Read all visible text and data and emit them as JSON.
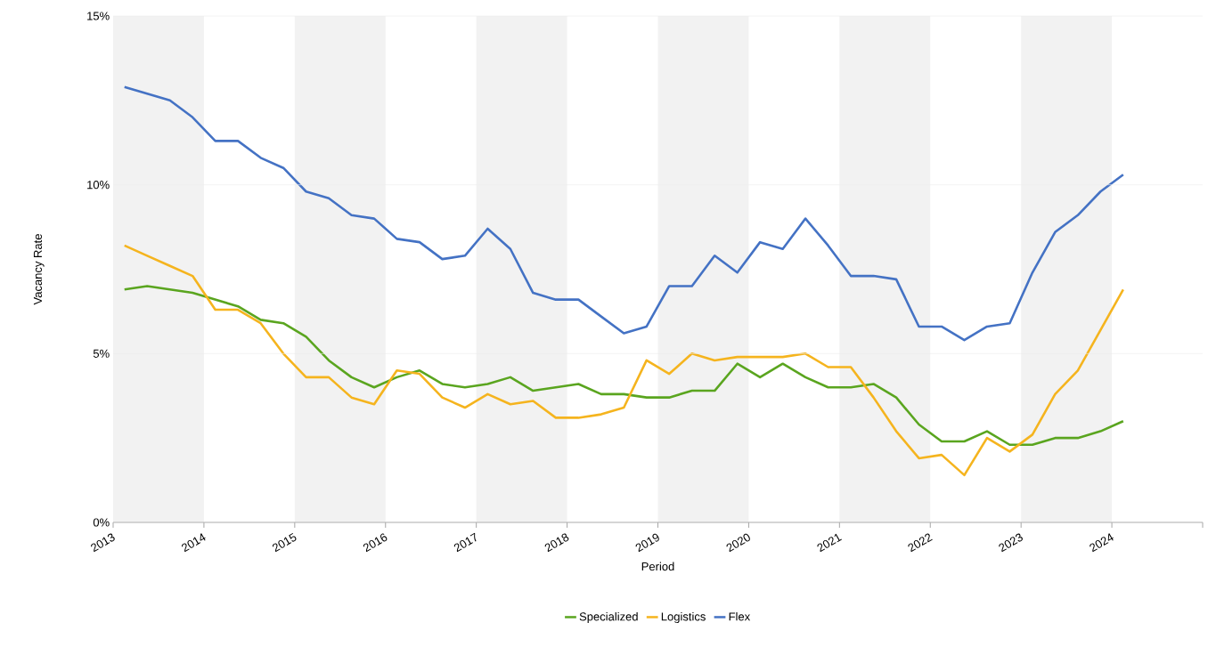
{
  "chart_data": {
    "type": "line",
    "xlabel": "Period",
    "ylabel": "Vacancy Rate",
    "x": [
      2013.125,
      2013.375,
      2013.625,
      2013.875,
      2014.125,
      2014.375,
      2014.625,
      2014.875,
      2015.125,
      2015.375,
      2015.625,
      2015.875,
      2016.125,
      2016.375,
      2016.625,
      2016.875,
      2017.125,
      2017.375,
      2017.625,
      2017.875,
      2018.125,
      2018.375,
      2018.625,
      2018.875,
      2019.125,
      2019.375,
      2019.625,
      2019.875,
      2020.125,
      2020.375,
      2020.625,
      2020.875,
      2021.125,
      2021.375,
      2021.625,
      2021.875,
      2022.125,
      2022.375,
      2022.625,
      2022.875,
      2023.125,
      2023.375,
      2023.625,
      2023.875,
      2024.125
    ],
    "series": [
      {
        "name": "Specialized",
        "color": "#5aa51f",
        "values": [
          6.9,
          7.0,
          6.9,
          6.8,
          6.6,
          6.4,
          6.0,
          5.9,
          5.5,
          4.8,
          4.3,
          4.0,
          4.3,
          4.5,
          4.1,
          4.0,
          4.1,
          4.3,
          3.9,
          4.0,
          4.1,
          3.8,
          3.8,
          3.7,
          3.7,
          3.9,
          3.9,
          4.7,
          4.3,
          4.7,
          4.3,
          4.0,
          4.0,
          4.1,
          3.7,
          2.9,
          2.4,
          2.4,
          2.7,
          2.3,
          2.3,
          2.5,
          2.5,
          2.7,
          3.0
        ]
      },
      {
        "name": "Logistics",
        "color": "#f5b41e",
        "values": [
          8.2,
          7.9,
          7.6,
          7.3,
          6.3,
          6.3,
          5.9,
          5.0,
          4.3,
          4.3,
          3.7,
          3.5,
          4.5,
          4.4,
          3.7,
          3.4,
          3.8,
          3.5,
          3.6,
          3.1,
          3.1,
          3.2,
          3.4,
          4.8,
          4.4,
          5.0,
          4.8,
          4.9,
          4.9,
          4.9,
          5.0,
          4.6,
          4.6,
          3.7,
          2.7,
          1.9,
          2.0,
          1.4,
          2.5,
          2.1,
          2.6,
          3.8,
          4.5,
          5.7,
          6.9
        ]
      },
      {
        "name": "Flex",
        "color": "#4472c4",
        "values": [
          12.9,
          12.7,
          12.5,
          12.0,
          11.3,
          11.3,
          10.8,
          10.5,
          9.8,
          9.6,
          9.1,
          9.0,
          8.4,
          8.3,
          7.8,
          7.9,
          8.7,
          8.1,
          6.8,
          6.6,
          6.6,
          6.1,
          5.6,
          5.8,
          7.0,
          7.0,
          7.9,
          7.4,
          8.3,
          8.1,
          9.0,
          8.2,
          7.3,
          7.3,
          7.2,
          5.8,
          5.8,
          5.4,
          5.8,
          5.9,
          7.4,
          8.6,
          9.1,
          9.8,
          10.3
        ]
      }
    ],
    "xlim": [
      2013,
      2025
    ],
    "xticks": [
      2013,
      2014,
      2015,
      2016,
      2017,
      2018,
      2019,
      2020,
      2021,
      2022,
      2023,
      2024,
      {
        "value": 2025,
        "label": null
      }
    ],
    "ylim": [
      0,
      15
    ],
    "yticks": [
      {
        "value": 0,
        "label": "0%"
      },
      {
        "value": 5,
        "label": "5%"
      },
      {
        "value": 10,
        "label": "10%"
      },
      {
        "value": 15,
        "label": "15%"
      }
    ],
    "bands": [
      {
        "axis": "x",
        "from": 2013,
        "to": 2014,
        "color": "#f2f2f2"
      },
      {
        "axis": "x",
        "from": 2015,
        "to": 2016,
        "color": "#f2f2f2"
      },
      {
        "axis": "x",
        "from": 2017,
        "to": 2018,
        "color": "#f2f2f2"
      },
      {
        "axis": "x",
        "from": 2019,
        "to": 2020,
        "color": "#f2f2f2"
      },
      {
        "axis": "x",
        "from": 2021,
        "to": 2022,
        "color": "#f2f2f2"
      },
      {
        "axis": "x",
        "from": 2023,
        "to": 2024,
        "color": "#f2f2f2"
      }
    ],
    "grid": "y",
    "legend": "bottom",
    "marker": "none",
    "line_style": "solid"
  }
}
